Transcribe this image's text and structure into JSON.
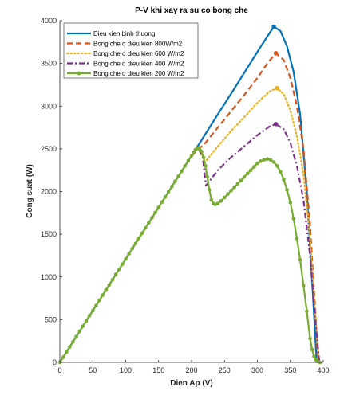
{
  "chart_data": {
    "type": "line",
    "title": "P-V khi xay ra su co bong che",
    "xlabel": "Dien Ap (V)",
    "ylabel": "Cong suat (W)",
    "xlim": [
      0,
      400
    ],
    "ylim": [
      0,
      4000
    ],
    "xticks": [
      "0",
      "50",
      "100",
      "150",
      "200",
      "250",
      "300",
      "350",
      "400"
    ],
    "yticks": [
      "0",
      "500",
      "1000",
      "1500",
      "2000",
      "2500",
      "3000",
      "3500",
      "4000"
    ],
    "grid": false,
    "legend_position": "top-left",
    "series": [
      {
        "name": "Dieu kien binh thuong",
        "color": "#0072BD",
        "style": "solid",
        "marker": "none",
        "x": [
          0,
          50,
          100,
          150,
          200,
          220,
          240,
          260,
          280,
          300,
          315,
          325,
          335,
          345,
          355,
          365,
          375,
          385,
          390
        ],
        "y": [
          0,
          605,
          1210,
          1815,
          2420,
          2660,
          2905,
          3145,
          3390,
          3635,
          3815,
          3930,
          3880,
          3700,
          3400,
          2900,
          2000,
          700,
          0
        ],
        "peak": {
          "x": 325,
          "y": 3930
        }
      },
      {
        "name": "Bong che o dieu kien 800W/m2",
        "color": "#D95319",
        "style": "dashed",
        "marker": "none",
        "x": [
          200,
          220,
          240,
          260,
          280,
          300,
          315,
          328,
          340,
          350,
          360,
          370,
          380,
          388,
          392
        ],
        "y": [
          2420,
          2560,
          2750,
          2940,
          3130,
          3330,
          3500,
          3620,
          3540,
          3330,
          3000,
          2500,
          1600,
          600,
          0
        ],
        "peak": {
          "x": 328,
          "y": 3620
        }
      },
      {
        "name": "Bong che o dieu kien 600 W/m2",
        "color": "#EDB120",
        "style": "dotted",
        "marker": "none",
        "x": [
          200,
          212,
          220,
          240,
          260,
          280,
          300,
          318,
          330,
          340,
          350,
          360,
          370,
          380,
          388,
          393
        ],
        "y": [
          2420,
          2530,
          2340,
          2530,
          2710,
          2870,
          3040,
          3170,
          3210,
          3140,
          2950,
          2650,
          2200,
          1450,
          550,
          0
        ],
        "peak": {
          "x": 330,
          "y": 3210
        }
      },
      {
        "name": "Bong che o dieu kien 400 W/m2",
        "color": "#7E2F8E",
        "style": "dashdot",
        "marker": "none",
        "x": [
          200,
          210,
          217,
          222,
          240,
          260,
          280,
          300,
          318,
          328,
          340,
          350,
          360,
          370,
          380,
          388,
          394
        ],
        "y": [
          2420,
          2510,
          2400,
          2070,
          2250,
          2400,
          2530,
          2660,
          2760,
          2790,
          2730,
          2570,
          2300,
          1900,
          1250,
          500,
          0
        ],
        "peak": {
          "x": 328,
          "y": 2790
        }
      },
      {
        "name": "Bong che o dieu kien 200 W/m2",
        "color": "#77AC30",
        "style": "solid",
        "marker": "dot",
        "x": [
          0,
          5,
          10,
          15,
          20,
          25,
          30,
          35,
          40,
          45,
          50,
          55,
          60,
          65,
          70,
          75,
          80,
          85,
          90,
          95,
          100,
          105,
          110,
          115,
          120,
          125,
          130,
          135,
          140,
          145,
          150,
          155,
          160,
          165,
          170,
          175,
          180,
          185,
          190,
          195,
          200,
          203,
          206,
          209,
          212,
          215,
          218,
          221,
          224,
          227,
          230,
          233,
          236,
          240,
          245,
          250,
          255,
          260,
          265,
          270,
          275,
          280,
          285,
          290,
          295,
          300,
          305,
          310,
          315,
          320,
          325,
          330,
          335,
          340,
          345,
          350,
          355,
          360,
          365,
          370,
          375,
          380,
          383,
          386,
          389,
          392,
          395
        ],
        "y": [
          0,
          60,
          121,
          182,
          242,
          303,
          363,
          424,
          484,
          545,
          605,
          666,
          726,
          787,
          847,
          908,
          968,
          1029,
          1089,
          1150,
          1210,
          1271,
          1331,
          1392,
          1452,
          1513,
          1573,
          1634,
          1694,
          1755,
          1815,
          1876,
          1936,
          1997,
          2057,
          2118,
          2178,
          2239,
          2299,
          2360,
          2420,
          2460,
          2490,
          2505,
          2500,
          2470,
          2400,
          2300,
          2170,
          2020,
          1900,
          1860,
          1850,
          1860,
          1890,
          1930,
          1970,
          2010,
          2050,
          2090,
          2130,
          2170,
          2210,
          2250,
          2290,
          2330,
          2355,
          2370,
          2380,
          2370,
          2345,
          2300,
          2230,
          2140,
          2020,
          1870,
          1680,
          1450,
          1200,
          900,
          600,
          280,
          150,
          70,
          30,
          10,
          0
        ]
      }
    ]
  }
}
